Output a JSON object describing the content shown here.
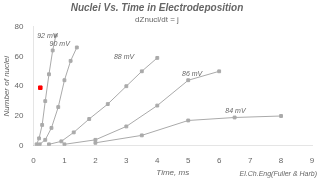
{
  "chart_data": {
    "type": "line",
    "title": "Nuclei Vs. Time in Electrodeposition",
    "subtitle": "dZnucl/dt = j",
    "footer": "El.Ch.Eng(Fuller & Harb)",
    "xlabel": "Time, ms",
    "ylabel": "Number of nuclei",
    "xlim": [
      0,
      9
    ],
    "ylim": [
      0,
      80
    ],
    "xticks": [
      0,
      1,
      2,
      3,
      4,
      5,
      6,
      7,
      8,
      9
    ],
    "yticks": [
      0,
      20,
      40,
      60,
      80
    ],
    "grid": false,
    "series": [
      {
        "x": [
          0.1,
          0.18,
          0.28,
          0.38,
          0.5,
          0.62,
          0.72
        ],
        "values": [
          1,
          5,
          14,
          30,
          48,
          64,
          74
        ],
        "marker": "square",
        "color": "#aaaaaa"
      },
      {
        "x": [
          0.2,
          0.38,
          0.58,
          0.8,
          1.0,
          1.2,
          1.4
        ],
        "values": [
          1,
          4,
          12,
          26,
          44,
          57,
          66
        ],
        "marker": "square",
        "color": "#aaaaaa"
      },
      {
        "x": [
          0.5,
          0.9,
          1.3,
          1.8,
          2.4,
          3.0,
          3.5,
          4.0
        ],
        "values": [
          1,
          3,
          9,
          18,
          28,
          40,
          50,
          59
        ],
        "marker": "square",
        "color": "#aaaaaa"
      },
      {
        "x": [
          1.0,
          2.0,
          3.0,
          4.0,
          5.0,
          6.0
        ],
        "values": [
          1,
          4,
          13,
          27,
          44,
          50
        ],
        "marker": "square",
        "color": "#aaaaaa"
      },
      {
        "x": [
          2.0,
          3.5,
          5.0,
          6.5,
          8.0
        ],
        "values": [
          2,
          7,
          17,
          19,
          20
        ],
        "marker": "square",
        "color": "#aaaaaa"
      },
      {
        "type": "scatter",
        "x": [
          0.22
        ],
        "values": [
          39
        ],
        "marker": "square",
        "color": "red"
      }
    ],
    "annotations": [
      {
        "text": "92 mV",
        "x": 0.12,
        "y": 71
      },
      {
        "text": "90 mV",
        "x": 0.52,
        "y": 66
      },
      {
        "text": "88 mV",
        "x": 2.6,
        "y": 57
      },
      {
        "text": "86 mV",
        "x": 4.8,
        "y": 46
      },
      {
        "text": "84 mV",
        "x": 6.2,
        "y": 21
      }
    ]
  }
}
